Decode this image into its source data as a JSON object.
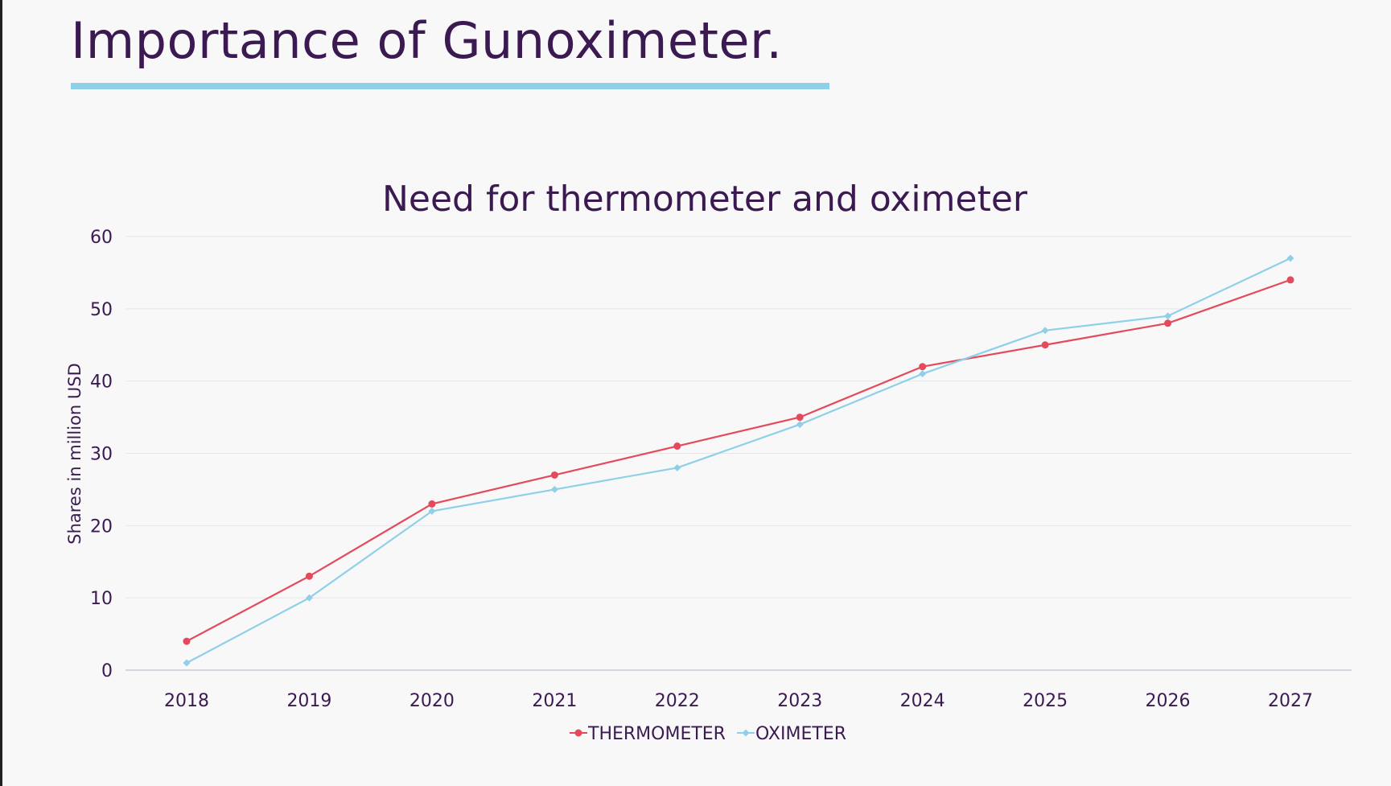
{
  "page": {
    "title": "Importance of Gunoximeter."
  },
  "colors": {
    "title_text": "#3b1a52",
    "title_rule": "#8fd0e8",
    "thermometer": "#e34a5c",
    "oximeter": "#8fd0e8"
  },
  "chart_data": {
    "type": "line",
    "title": "Need for thermometer and oximeter",
    "xlabel": "",
    "ylabel": "Shares in million USD",
    "ylim": [
      0,
      60
    ],
    "yticks": [
      0,
      10,
      20,
      30,
      40,
      50,
      60
    ],
    "categories": [
      "2018",
      "2019",
      "2020",
      "2021",
      "2022",
      "2023",
      "2024",
      "2025",
      "2026",
      "2027"
    ],
    "grid": "horizontal",
    "legend_position": "bottom",
    "series": [
      {
        "name": "THERMOMETER",
        "marker": "circle",
        "values": [
          4,
          13,
          23,
          27,
          31,
          35,
          42,
          45,
          48,
          54
        ]
      },
      {
        "name": "OXIMETER",
        "marker": "diamond",
        "values": [
          1,
          10,
          22,
          25,
          28,
          34,
          41,
          47,
          49,
          57
        ]
      }
    ]
  }
}
